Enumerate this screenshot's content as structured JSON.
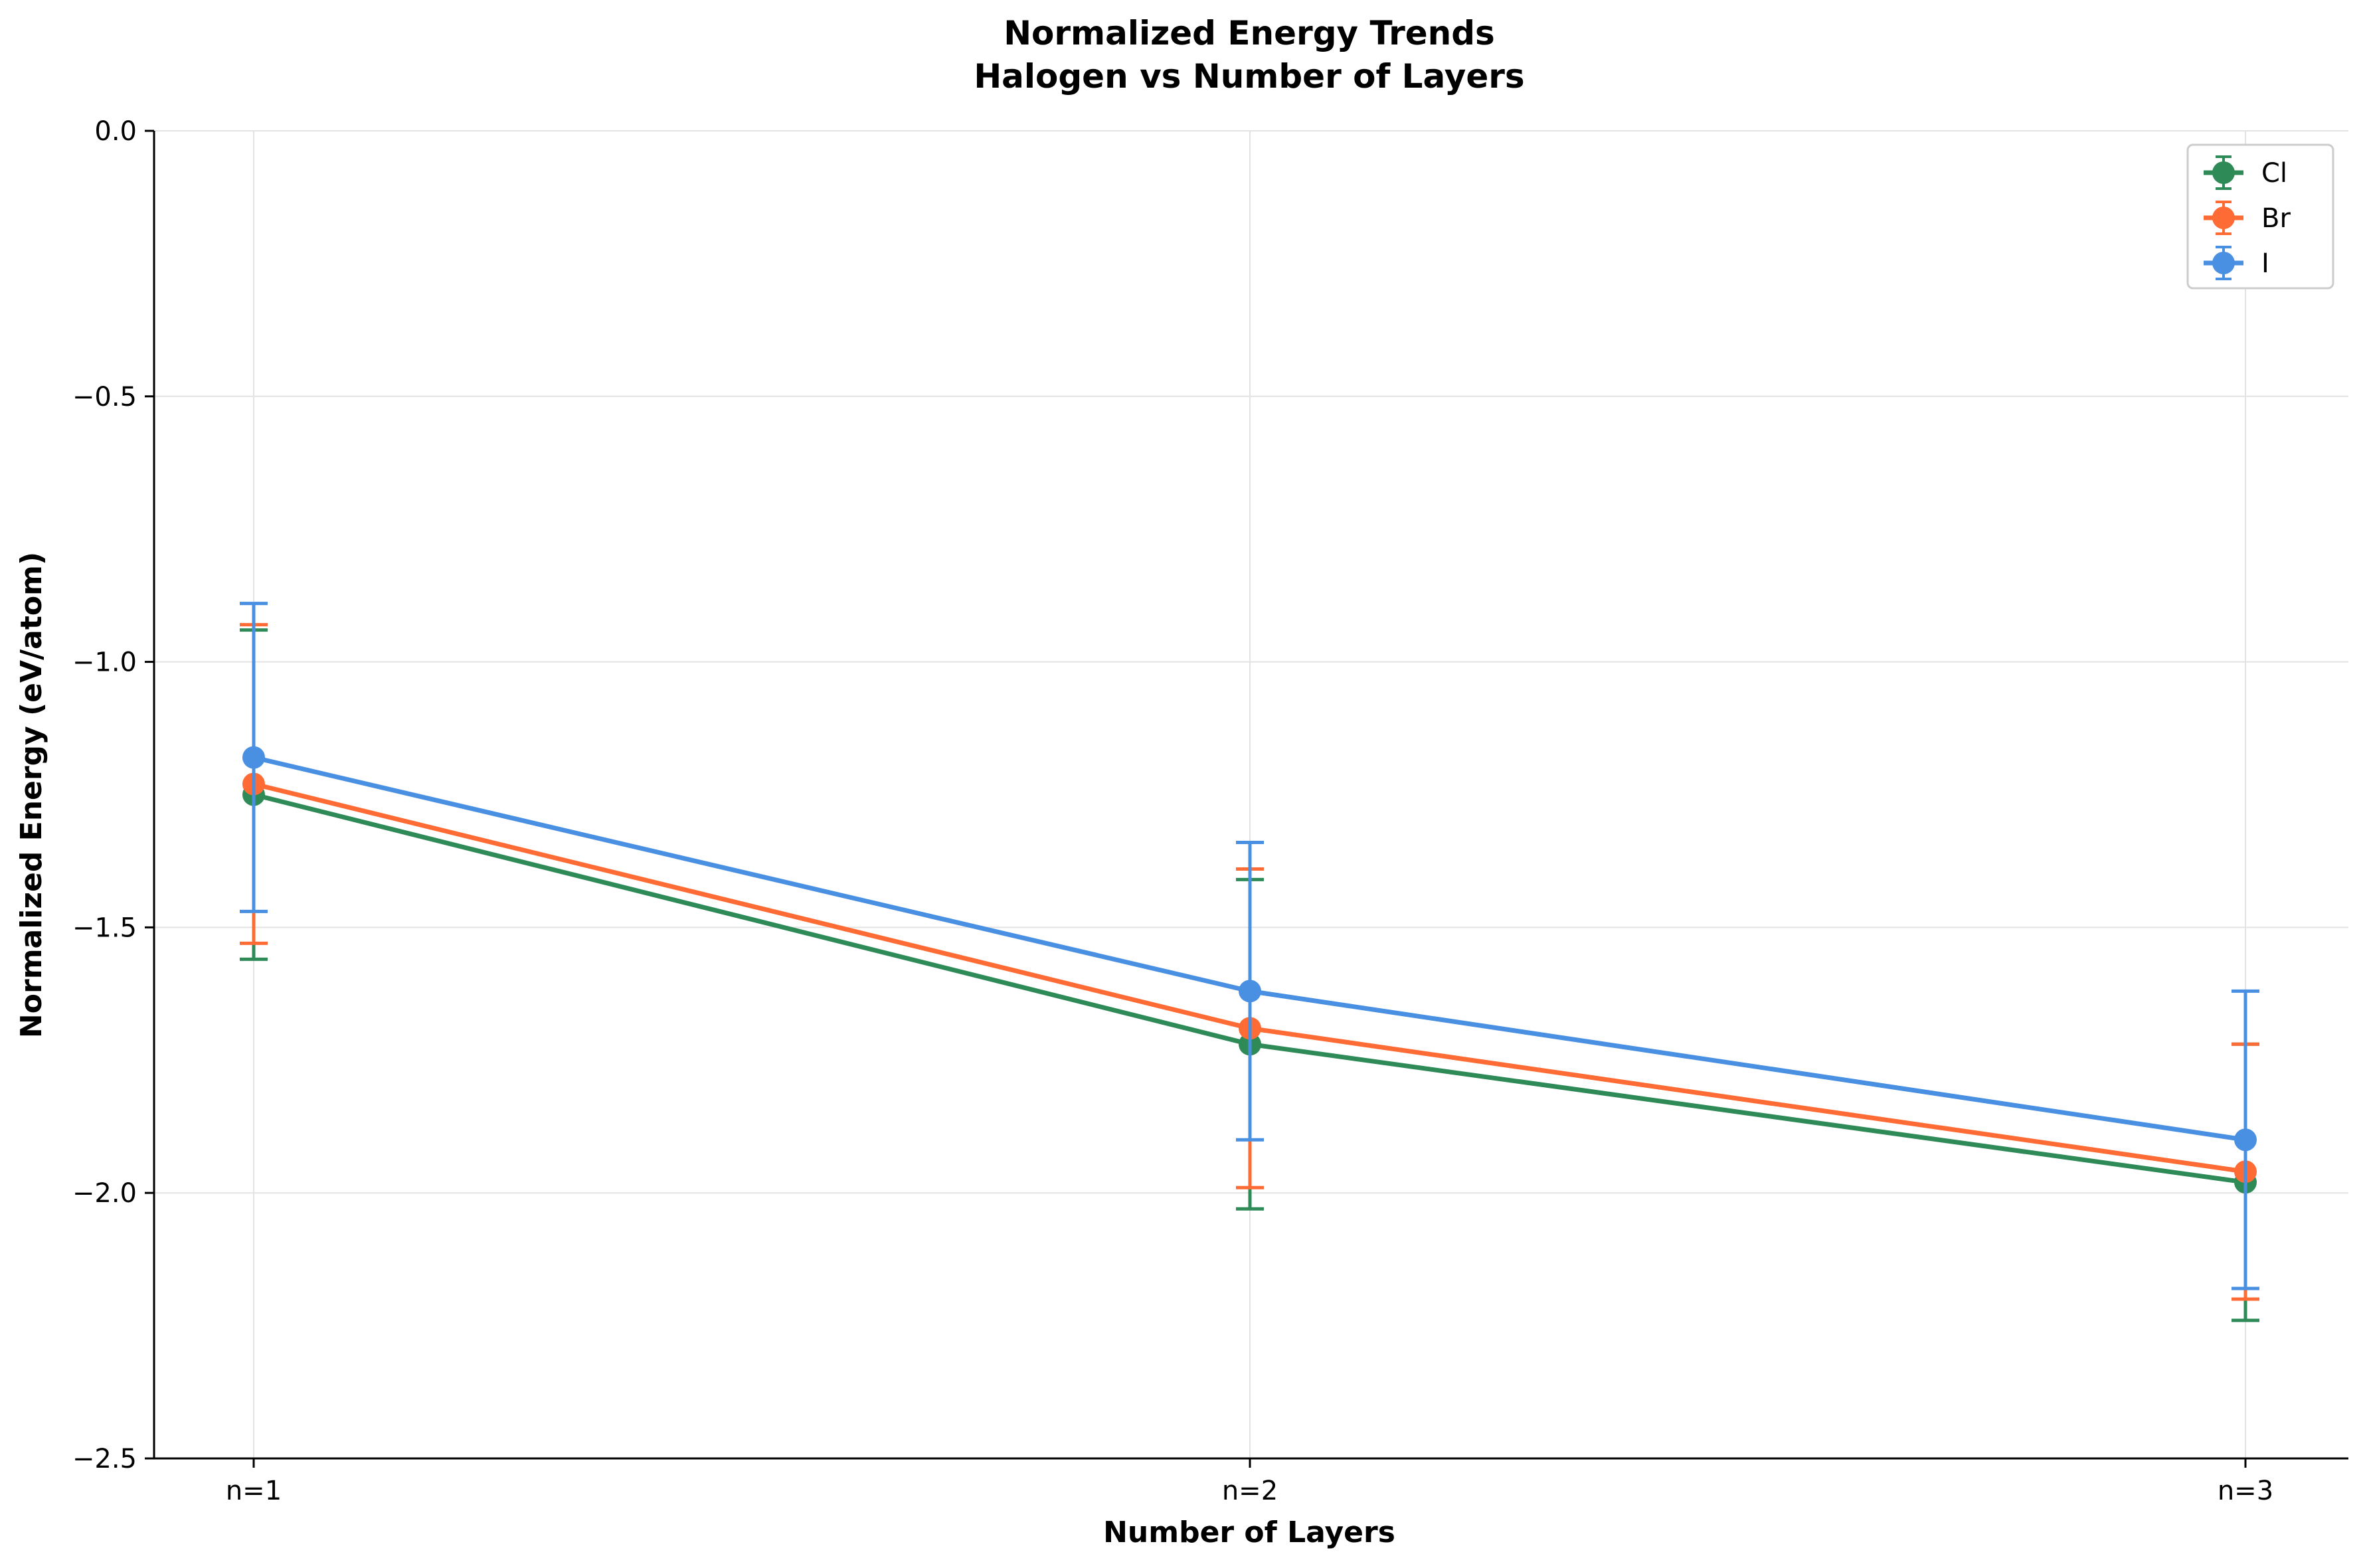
{
  "chart_data": {
    "type": "line",
    "title": "Normalized Energy Trends",
    "subtitle": "Halogen vs Number of Layers",
    "xlabel": "Number of Layers",
    "ylabel": "Normalized Energy (eV/atom)",
    "categories": [
      "n=1",
      "n=2",
      "n=3"
    ],
    "ylim": [
      -2.5,
      0.0
    ],
    "yticks": [
      "0.0",
      "−0.5",
      "−1.0",
      "−1.5",
      "−2.0",
      "−2.5"
    ],
    "ytick_values": [
      0.0,
      -0.5,
      -1.0,
      -1.5,
      -2.0,
      -2.5
    ],
    "grid": true,
    "legend_position": "top-right",
    "series": [
      {
        "name": "Cl",
        "color": "#2e8b57",
        "values": [
          -1.25,
          -1.72,
          -1.98
        ],
        "errors": [
          0.31,
          0.31,
          0.26
        ]
      },
      {
        "name": "Br",
        "color": "#ff6b35",
        "values": [
          -1.23,
          -1.69,
          -1.96
        ],
        "errors": [
          0.3,
          0.3,
          0.24
        ]
      },
      {
        "name": "I",
        "color": "#4a90e2",
        "values": [
          -1.18,
          -1.62,
          -1.9
        ],
        "errors": [
          0.29,
          0.28,
          0.28
        ]
      }
    ]
  }
}
